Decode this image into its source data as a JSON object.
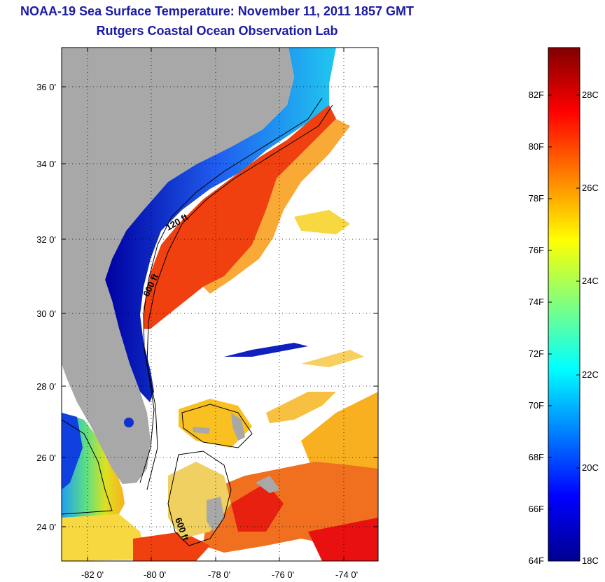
{
  "title": {
    "line1": "NOAA-19 Sea Surface Temperature:  November 11, 2011 1857 GMT",
    "line2": "Rutgers Coastal Ocean Observation Lab"
  },
  "map": {
    "lat_labels": [
      "36 0'",
      "34 0'",
      "32 0'",
      "30 0'",
      "28 0'",
      "26 0'",
      "24 0'"
    ],
    "lon_labels": [
      "-82 0'",
      "-80 0'",
      "-78 0'",
      "-76 0'",
      "-74 0'"
    ],
    "contour_labels": [
      "120 ft",
      "600 ft",
      "600 ft"
    ],
    "colors": {
      "land": "#a8a8a8",
      "cloud": "#ffffff",
      "coast": "#0000b8",
      "warm": "#f04010",
      "mid": "#f8c020"
    }
  },
  "colorbar": {
    "fahrenheit": [
      "82F",
      "80F",
      "78F",
      "76F",
      "74F",
      "72F",
      "70F",
      "68F",
      "66F",
      "64F"
    ],
    "celsius": [
      "28C",
      "26C",
      "24C",
      "22C",
      "20C",
      "18C"
    ],
    "colormap": "jet"
  }
}
